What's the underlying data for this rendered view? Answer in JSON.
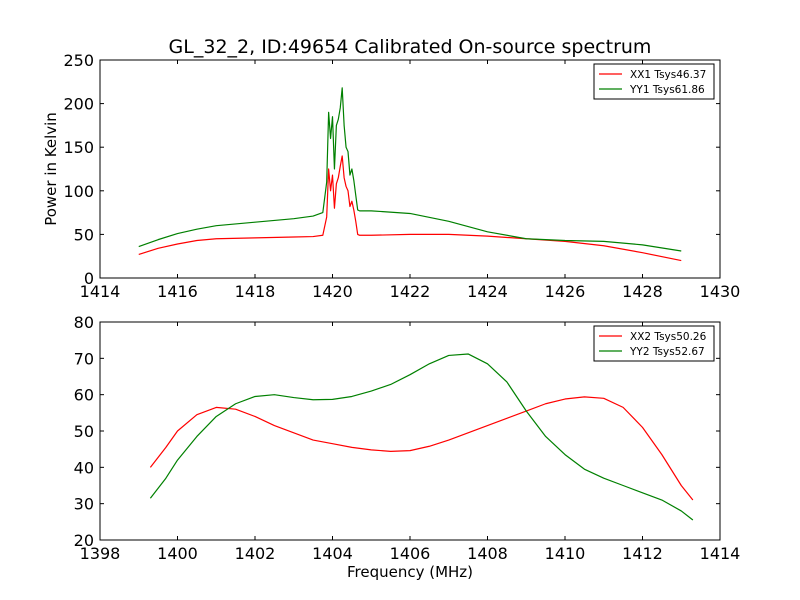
{
  "chart_data": [
    {
      "type": "line",
      "title": "GL_32_2, ID:49654 Calibrated On-source spectrum",
      "xlabel": "",
      "ylabel": "Power in Kelvin",
      "xlim": [
        1414,
        1430
      ],
      "ylim": [
        0,
        250
      ],
      "xticks": [
        "1414",
        "1416",
        "1418",
        "1420",
        "1422",
        "1424",
        "1426",
        "1428",
        "1430"
      ],
      "yticks": [
        "0",
        "50",
        "100",
        "150",
        "200",
        "250"
      ],
      "legend_position": "top-right",
      "series": [
        {
          "name": "XX1 Tsys46.37",
          "color": "#ff0000",
          "x": [
            1415.0,
            1415.5,
            1416.0,
            1416.5,
            1417.0,
            1418.0,
            1419.0,
            1419.5,
            1419.75,
            1419.85,
            1419.9,
            1419.95,
            1420.0,
            1420.05,
            1420.1,
            1420.15,
            1420.2,
            1420.25,
            1420.3,
            1420.35,
            1420.4,
            1420.45,
            1420.5,
            1420.55,
            1420.6,
            1420.65,
            1420.7,
            1421.0,
            1422.0,
            1423.0,
            1424.0,
            1425.0,
            1426.0,
            1427.0,
            1428.0,
            1429.0
          ],
          "y": [
            27,
            34,
            39,
            43,
            45,
            46,
            47,
            47.5,
            49,
            70,
            125,
            100,
            118,
            80,
            108,
            115,
            128,
            140,
            115,
            105,
            100,
            82,
            88,
            78,
            65,
            50,
            49,
            49,
            50,
            50,
            48,
            45,
            42,
            37,
            29,
            20
          ]
        },
        {
          "name": "YY1 Tsys61.86",
          "color": "#008000",
          "x": [
            1415.0,
            1415.5,
            1416.0,
            1416.5,
            1417.0,
            1418.0,
            1419.0,
            1419.5,
            1419.75,
            1419.85,
            1419.9,
            1419.95,
            1420.0,
            1420.05,
            1420.1,
            1420.15,
            1420.2,
            1420.25,
            1420.3,
            1420.35,
            1420.4,
            1420.45,
            1420.5,
            1420.55,
            1420.6,
            1420.65,
            1420.7,
            1421.0,
            1422.0,
            1423.0,
            1424.0,
            1425.0,
            1426.0,
            1427.0,
            1428.0,
            1429.0
          ],
          "y": [
            36,
            44,
            51,
            56,
            60,
            64,
            68,
            71,
            75,
            110,
            190,
            160,
            185,
            125,
            175,
            182,
            195,
            218,
            175,
            150,
            145,
            118,
            125,
            112,
            95,
            78,
            77,
            77,
            74,
            65,
            53,
            45,
            43,
            42,
            38,
            31
          ]
        }
      ]
    },
    {
      "type": "line",
      "title": "",
      "xlabel": "Frequency (MHz)",
      "ylabel": "",
      "xlim": [
        1398,
        1414
      ],
      "ylim": [
        20,
        80
      ],
      "xticks": [
        "1398",
        "1400",
        "1402",
        "1404",
        "1406",
        "1408",
        "1410",
        "1412",
        "1414"
      ],
      "yticks": [
        "20",
        "30",
        "40",
        "50",
        "60",
        "70",
        "80"
      ],
      "legend_position": "top-right",
      "series": [
        {
          "name": "XX2 Tsys50.26",
          "color": "#ff0000",
          "x": [
            1399.3,
            1399.7,
            1400.0,
            1400.5,
            1401.0,
            1401.5,
            1402.0,
            1402.5,
            1403.0,
            1403.5,
            1404.0,
            1404.5,
            1405.0,
            1405.5,
            1406.0,
            1406.5,
            1407.0,
            1407.5,
            1408.0,
            1408.5,
            1409.0,
            1409.5,
            1410.0,
            1410.5,
            1411.0,
            1411.5,
            1412.0,
            1412.5,
            1413.0,
            1413.3
          ],
          "y": [
            40,
            45.5,
            50,
            54.5,
            56.5,
            56,
            54,
            51.5,
            49.5,
            47.5,
            46.5,
            45.5,
            44.8,
            44.4,
            44.6,
            45.8,
            47.5,
            49.5,
            51.5,
            53.5,
            55.5,
            57.5,
            58.8,
            59.4,
            59,
            56.5,
            51,
            43.5,
            35,
            31
          ]
        },
        {
          "name": "YY2 Tsys52.67",
          "color": "#008000",
          "x": [
            1399.3,
            1399.7,
            1400.0,
            1400.5,
            1401.0,
            1401.5,
            1402.0,
            1402.5,
            1403.0,
            1403.5,
            1404.0,
            1404.5,
            1405.0,
            1405.5,
            1406.0,
            1406.5,
            1407.0,
            1407.5,
            1408.0,
            1408.5,
            1409.0,
            1409.5,
            1410.0,
            1410.5,
            1411.0,
            1411.5,
            1412.0,
            1412.5,
            1413.0,
            1413.3
          ],
          "y": [
            31.5,
            37,
            42,
            48.5,
            54,
            57.5,
            59.5,
            60,
            59.2,
            58.6,
            58.7,
            59.5,
            61,
            62.8,
            65.5,
            68.5,
            70.8,
            71.2,
            68.5,
            63.5,
            55.5,
            48.5,
            43.5,
            39.5,
            37,
            35,
            33,
            31,
            28,
            25.5
          ]
        }
      ]
    }
  ]
}
